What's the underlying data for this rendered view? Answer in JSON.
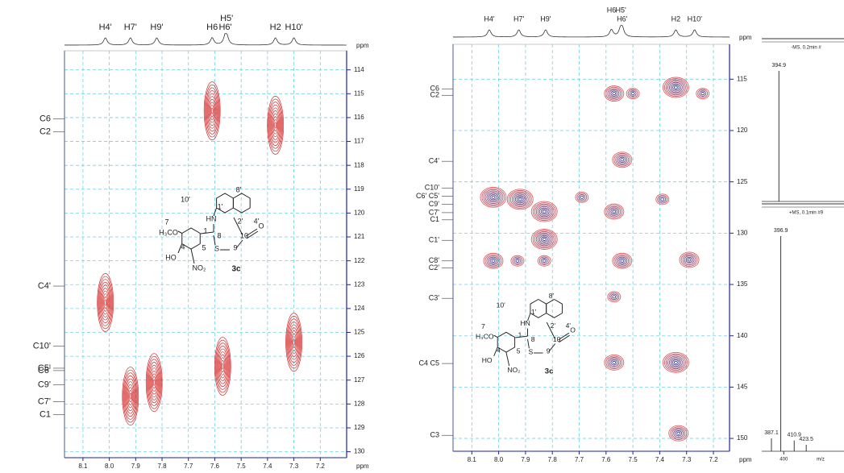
{
  "chart_data": [
    {
      "type": "hsqc",
      "x_label": "ppm",
      "y_label": "ppm",
      "xlim": [
        8.17,
        7.1
      ],
      "ylim": [
        113.2,
        130.25
      ],
      "xticks": [
        8.1,
        {
          "value": 8,
          "label": "8.0"
        },
        7.9,
        7.8,
        7.7,
        7.6,
        7.5,
        7.4,
        7.3,
        7.2
      ],
      "yticks": [
        114,
        115,
        116,
        117,
        118,
        119,
        120,
        121,
        122,
        123,
        124,
        125,
        126,
        127,
        128,
        129,
        130
      ],
      "grid": true,
      "color": "#d42a2a",
      "x": [
        7.61,
        7.37,
        8.015,
        7.3,
        7.57,
        7.83,
        7.92
      ],
      "values": [
        115.72,
        116.32,
        123.75,
        125.41,
        126.42,
        127.1,
        127.67
      ],
      "proton_labels": {
        "labels": [
          "H4'",
          "H7'",
          "H9'",
          "H6",
          "H5'",
          "H6'",
          "H2",
          "H10'"
        ],
        "x": [
          8.015,
          7.92,
          7.82,
          7.61,
          7.555,
          7.56,
          7.37,
          7.3
        ]
      },
      "carbon_labels": {
        "labels": [
          "C6",
          "C2",
          "C4'",
          "C10'",
          "C5'",
          "C6'",
          "C9'",
          "C7'",
          "C1"
        ],
        "y": [
          116.05,
          116.6,
          123.06,
          125.58,
          126.5,
          126.6,
          127.2,
          127.9,
          128.45
        ]
      },
      "structure": [
        "7",
        "H₃CO",
        "HN",
        "1",
        "8",
        "10'",
        "8'",
        "1'",
        "2'",
        "4'",
        "S",
        "9",
        "O",
        "10",
        "4",
        "5",
        "HO",
        "NO₂",
        "3c"
      ]
    },
    {
      "type": "hmbc",
      "x_label": "ppm",
      "y_label": "ppm",
      "xlim": [
        8.17,
        7.14
      ],
      "ylim": [
        111.6,
        151.25
      ],
      "xticks": [
        8.1,
        {
          "value": 8,
          "label": "8.0"
        },
        7.9,
        7.8,
        7.7,
        7.6,
        7.5,
        7.4,
        7.3,
        7.2
      ],
      "yticks": [
        115,
        120,
        125,
        130,
        135,
        140,
        145,
        150
      ],
      "grid": true,
      "color": "#e06060",
      "inner_color": "#3a3f8f",
      "x": [
        7.57,
        7.34,
        7.5,
        7.24,
        7.54,
        8.02,
        7.92,
        7.83,
        7.83,
        7.69,
        7.57,
        7.39,
        8.02,
        7.93,
        7.83,
        7.54,
        7.29,
        7.57,
        7.57,
        7.34,
        7.33
      ],
      "values": [
        116.4,
        115.8,
        116.4,
        116.4,
        122.85,
        126.5,
        126.7,
        127.9,
        130.6,
        126.5,
        127.9,
        126.7,
        132.7,
        132.7,
        132.7,
        132.7,
        132.6,
        136.2,
        142.6,
        142.6,
        149.5
      ],
      "sizes": [
        2,
        3,
        1,
        1,
        2,
        3,
        3,
        3,
        3,
        1,
        2,
        1,
        2,
        1,
        1,
        2,
        2,
        1,
        2,
        3,
        2
      ],
      "proton_labels": {
        "labels": [
          "H4'",
          "H7'",
          "H9'",
          "H6",
          "H5'",
          "H6'",
          "H2",
          "H10'"
        ],
        "x": [
          8.035,
          7.925,
          7.825,
          7.58,
          7.545,
          7.54,
          7.34,
          7.27
        ]
      },
      "carbon_labels": {
        "labels": [
          "C6",
          "C2",
          "C4'",
          "C10'",
          "C6' C5'",
          "C9'",
          "C7'",
          "C1",
          "C1'",
          "C8'",
          "C2'",
          "C3'",
          "C4   C5",
          "C3"
        ],
        "y": [
          115.94,
          116.57,
          123.0,
          125.6,
          126.4,
          127.2,
          128.0,
          128.7,
          130.7,
          132.7,
          133.4,
          136.35,
          142.7,
          149.7
        ]
      },
      "structure": [
        "7",
        "H₃CO",
        "HN",
        "1",
        "8",
        "10'",
        "8'",
        "1'",
        "2'",
        "4'",
        "S",
        "9",
        "O",
        "10",
        "4",
        "5",
        "HO",
        "NO₂",
        "3c"
      ]
    },
    {
      "type": "ms",
      "x_label": "m/z",
      "xlim": [
        377,
        463
      ],
      "xticks": [
        400
      ],
      "spectra": [
        {
          "title": "-MS, 0.2min #",
          "x": [
            394.9
          ],
          "values": [
            100
          ]
        },
        {
          "title": "+MS, 0.1min #9",
          "x": [
            387.1,
            396.9,
            410.9,
            423.5
          ],
          "values": [
            6,
            100,
            5,
            3
          ]
        }
      ]
    }
  ]
}
